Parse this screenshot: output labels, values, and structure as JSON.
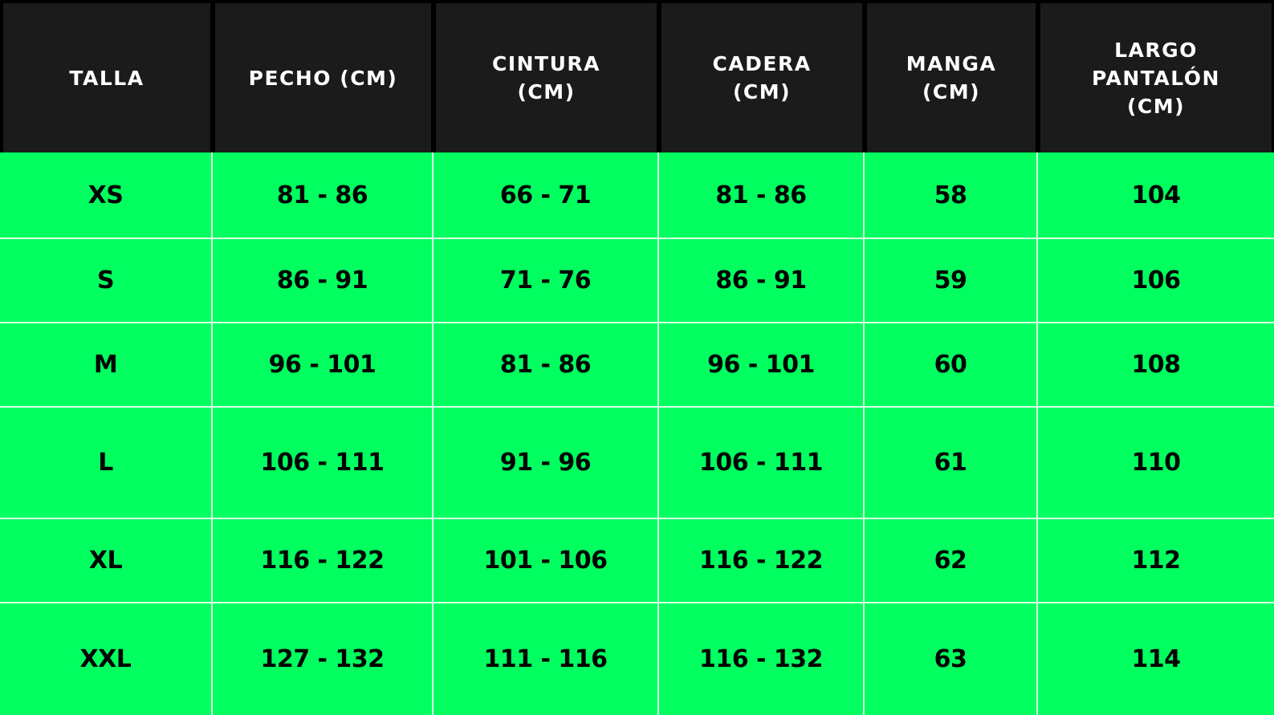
{
  "colors": {
    "header_background": "#1b1b1b",
    "header_text": "#ffffff",
    "body_background": "#00ff5f",
    "body_text": "#000000",
    "grid_lines": "#dfffe9"
  },
  "table": {
    "headers": [
      "TALLA",
      "PECHO (CM)",
      "CINTURA\n(CM)",
      "CADERA\n(CM)",
      "MANGA\n(CM)",
      "LARGO\nPANTALÓN\n(CM)"
    ],
    "rows": [
      [
        "XS",
        "81 - 86",
        "66 - 71",
        "81 - 86",
        "58",
        "104"
      ],
      [
        "S",
        "86 - 91",
        "71 - 76",
        "86 - 91",
        "59",
        "106"
      ],
      [
        "M",
        "96 - 101",
        "81 - 86",
        "96 - 101",
        "60",
        "108"
      ],
      [
        "L",
        "106 - 111",
        "91 - 96",
        "106 - 111",
        "61",
        "110"
      ],
      [
        "XL",
        "116 - 122",
        "101 - 106",
        "116 - 122",
        "62",
        "112"
      ],
      [
        "XXL",
        "127 - 132",
        "111 - 116",
        "116 - 132",
        "63",
        "114"
      ]
    ]
  }
}
